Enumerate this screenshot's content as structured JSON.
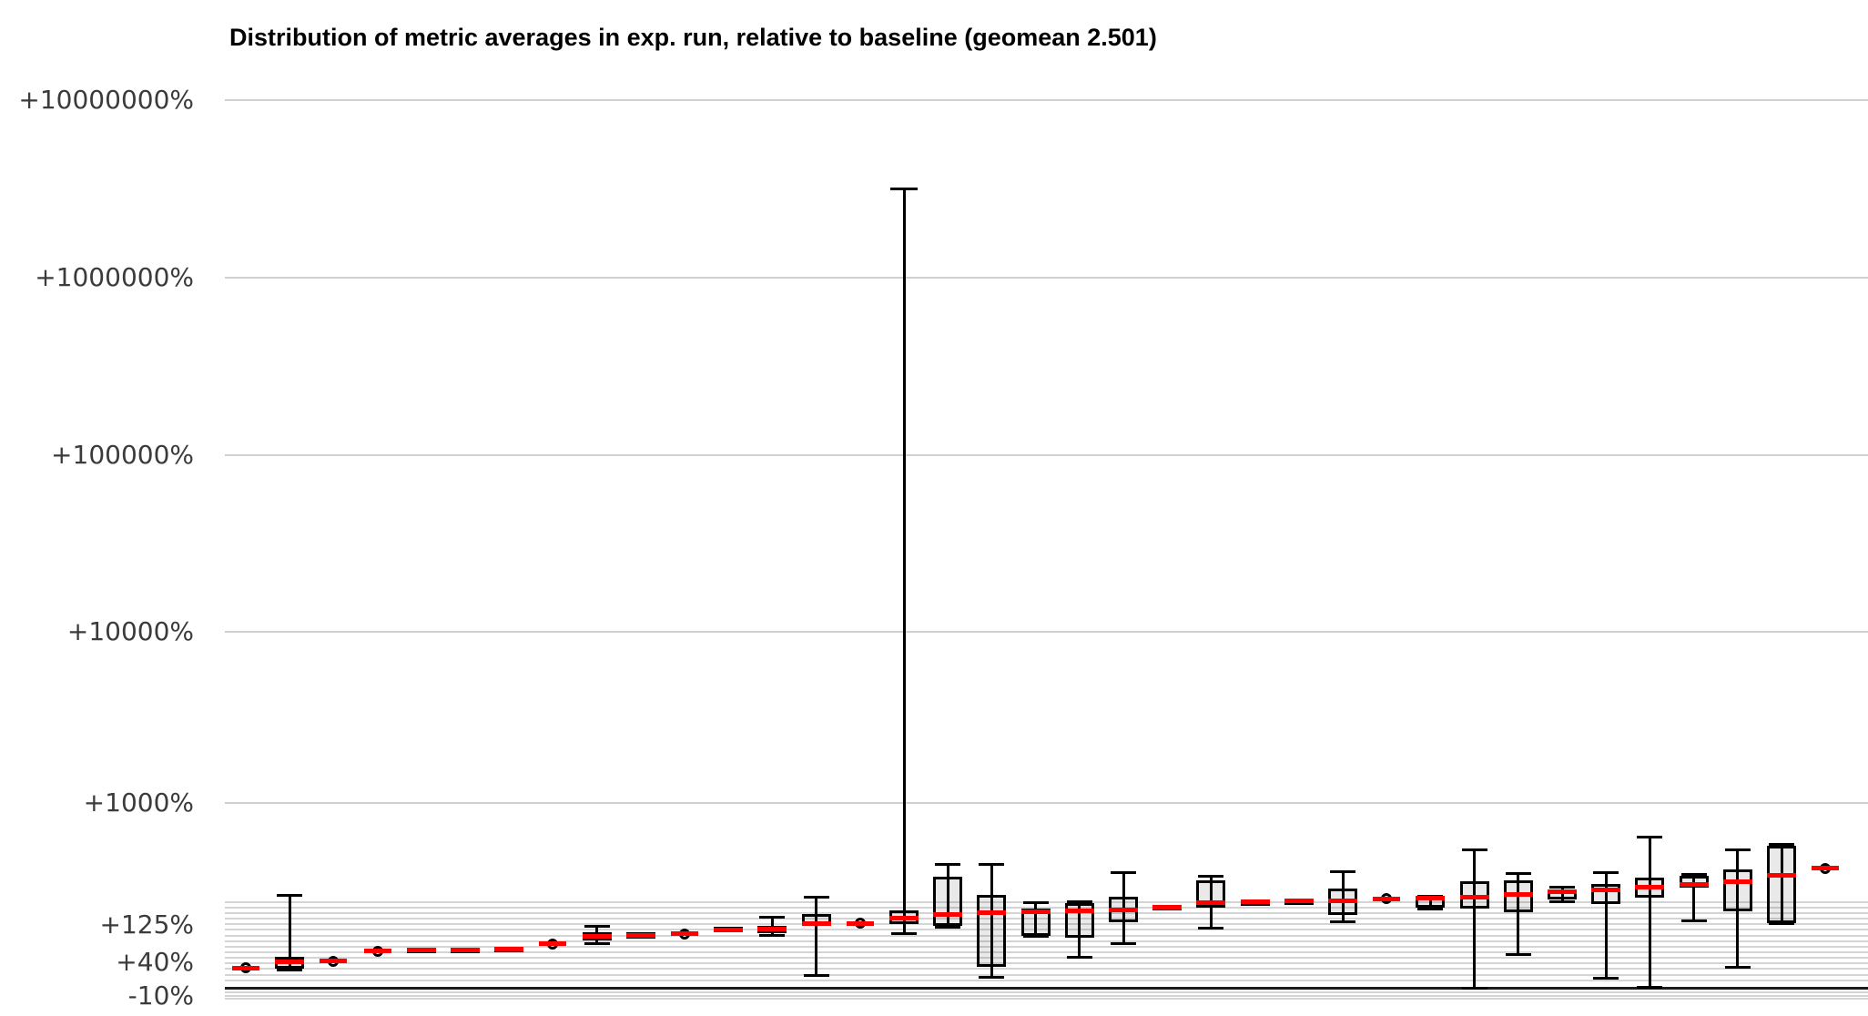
{
  "title": "Distribution of metric averages in exp. run, relative to baseline (geomean 2.501)",
  "chart_data": {
    "type": "boxplot",
    "title": "Distribution of metric averages in exp. run, relative to baseline (geomean 2.501)",
    "geomean": "2.501",
    "y_axis": {
      "scale": "log10(1 + value_pct/100)",
      "unit": "%",
      "ticks": [
        {
          "label": "+10000000%",
          "value": 10000000
        },
        {
          "label": "+1000000%",
          "value": 1000000
        },
        {
          "label": "+100000%",
          "value": 100000
        },
        {
          "label": "+10000%",
          "value": 10000
        },
        {
          "label": "+1000%",
          "value": 1000
        },
        {
          "label": "+125%",
          "value": 125
        },
        {
          "label": "+40%",
          "value": 40
        },
        {
          "label": "-10%",
          "value": -10
        }
      ],
      "baseline_value": 0,
      "grid": true
    },
    "legend": null,
    "colors": {
      "median": "#ff0000",
      "box_border": "#000000",
      "box_fill": "#e9e9e9",
      "grid": "#d4d4d4",
      "baseline": "#1c1c1c"
    },
    "boxes": [
      {
        "type": "point",
        "median": 29
      },
      {
        "type": "box",
        "median": 40,
        "q1": 28,
        "q3": 49,
        "whisker_low": 26,
        "whisker_high": 233
      },
      {
        "type": "point",
        "median": 41
      },
      {
        "type": "point",
        "median": 61
      },
      {
        "type": "flat",
        "median": 63,
        "q1": 57,
        "q3": 68
      },
      {
        "type": "flat",
        "median": 64,
        "q1": 58,
        "q3": 69
      },
      {
        "type": "flat",
        "median": 65,
        "q1": 59,
        "q3": 70
      },
      {
        "type": "point",
        "median": 77
      },
      {
        "type": "box",
        "median": 96,
        "q1": 85,
        "q3": 105,
        "whisker_low": 77,
        "whisker_high": 123
      },
      {
        "type": "flat",
        "median": 97,
        "q1": 89,
        "q3": 105
      },
      {
        "type": "point",
        "median": 101
      },
      {
        "type": "flat",
        "median": 111,
        "q1": 105,
        "q3": 120
      },
      {
        "type": "box",
        "median": 114,
        "q1": 103,
        "q3": 123,
        "whisker_low": 98,
        "whisker_high": 151
      },
      {
        "type": "box",
        "median": 130,
        "q1": 122,
        "q3": 160,
        "whisker_low": 17,
        "whisker_high": 224
      },
      {
        "type": "point",
        "median": 131
      },
      {
        "type": "box",
        "median": 146,
        "q1": 128,
        "q3": 173,
        "whisker_low": 101,
        "whisker_high": 3180000
      },
      {
        "type": "box",
        "median": 158,
        "q1": 123,
        "q3": 322,
        "whisker_low": 120,
        "whisker_high": 398
      },
      {
        "type": "box",
        "median": 166,
        "q1": 31,
        "q3": 233,
        "whisker_low": 14,
        "whisker_high": 393
      },
      {
        "type": "box",
        "median": 168,
        "q1": 96,
        "q3": 179,
        "whisker_low": 95,
        "whisker_high": 200
      },
      {
        "type": "box",
        "median": 170,
        "q1": 91,
        "q3": 200,
        "whisker_low": 48,
        "whisker_high": 206
      },
      {
        "type": "box",
        "median": 176,
        "q1": 134,
        "q3": 226,
        "whisker_low": 78,
        "whisker_high": 343
      },
      {
        "type": "flat",
        "median": 184,
        "q1": 176,
        "q3": 193
      },
      {
        "type": "box",
        "median": 200,
        "q1": 184,
        "q3": 304,
        "whisker_low": 117,
        "whisker_high": 325
      },
      {
        "type": "flat",
        "median": 204,
        "q1": 197,
        "q3": 212
      },
      {
        "type": "flat",
        "median": 208,
        "q1": 196,
        "q3": 216
      },
      {
        "type": "box",
        "median": 210,
        "q1": 156,
        "q3": 264,
        "whisker_low": 136,
        "whisker_high": 349
      },
      {
        "type": "point",
        "median": 218
      },
      {
        "type": "box",
        "median": 220,
        "q1": 183,
        "q3": 228,
        "whisker_low": 178,
        "whisker_high": 227
      },
      {
        "type": "box",
        "median": 225,
        "q1": 179,
        "q3": 297,
        "whisker_low": 0,
        "whisker_high": 501
      },
      {
        "type": "box",
        "median": 237,
        "q1": 166,
        "q3": 303,
        "whisker_low": 53,
        "whisker_high": 339
      },
      {
        "type": "box",
        "median": 246,
        "q1": 215,
        "q3": 258,
        "whisker_low": 206,
        "whisker_high": 270
      },
      {
        "type": "box",
        "median": 254,
        "q1": 198,
        "q3": 284,
        "whisker_low": 13,
        "whisker_high": 343
      },
      {
        "type": "box",
        "median": 267,
        "q1": 222,
        "q3": 317,
        "whisker_low": 1,
        "whisker_high": 610
      },
      {
        "type": "box",
        "median": 284,
        "q1": 267,
        "q3": 327,
        "whisker_low": 138,
        "whisker_high": 333
      },
      {
        "type": "box",
        "median": 294,
        "q1": 170,
        "q3": 366,
        "whisker_low": 30,
        "whisker_high": 496
      },
      {
        "type": "box",
        "median": 330,
        "q1": 131,
        "q3": 528,
        "whisker_low": 130,
        "whisker_high": 546
      },
      {
        "type": "point",
        "median": 370
      }
    ]
  }
}
